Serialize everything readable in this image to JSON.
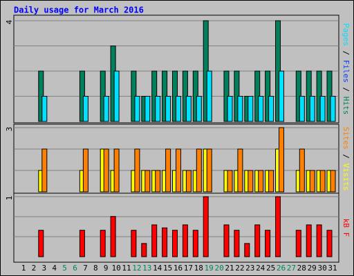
{
  "chart_data": {
    "type": "bar",
    "title": "Daily usage for March 2016",
    "title_color": "#0000ff",
    "categories": [
      "1",
      "2",
      "3",
      "4",
      "5",
      "6",
      "7",
      "8",
      "9",
      "10",
      "11",
      "12",
      "13",
      "14",
      "15",
      "16",
      "17",
      "18",
      "19",
      "20",
      "21",
      "22",
      "23",
      "24",
      "25",
      "26",
      "27",
      "28",
      "29",
      "30",
      "31"
    ],
    "category_colors": [
      "#000000",
      "#000000",
      "#000000",
      "#000000",
      "#00805c",
      "#00805c",
      "#000000",
      "#000000",
      "#000000",
      "#000000",
      "#000000",
      "#00805c",
      "#00805c",
      "#000000",
      "#000000",
      "#000000",
      "#000000",
      "#000000",
      "#00805c",
      "#00805c",
      "#000000",
      "#000000",
      "#000000",
      "#000000",
      "#000000",
      "#00805c",
      "#00805c",
      "#000000",
      "#000000",
      "#000000",
      "#000000"
    ],
    "legend_separator": " / ",
    "panels": [
      {
        "ylim": [
          0,
          4
        ],
        "yticks": [
          4
        ],
        "gridlines": [
          1,
          2,
          3
        ],
        "series": [
          {
            "name": "Pages",
            "color": "#00e0ff",
            "legend_only": true
          },
          {
            "name": "Files",
            "color": "#0040ff",
            "legend_only": true
          },
          {
            "name": "Hits",
            "color": "#00805c",
            "values": [
              null,
              null,
              2,
              null,
              null,
              null,
              2,
              null,
              2,
              3,
              null,
              2,
              1,
              2,
              2,
              2,
              2,
              2,
              4,
              null,
              2,
              2,
              1,
              2,
              2,
              4,
              null,
              2,
              2,
              2,
              2
            ]
          },
          {
            "name": "Pages",
            "color": "#00e0ff",
            "legend_hidden": true,
            "values": [
              null,
              null,
              1,
              null,
              null,
              null,
              1,
              null,
              1,
              2,
              null,
              1,
              1,
              1,
              1,
              1,
              1,
              1,
              2,
              null,
              1,
              1,
              1,
              1,
              1,
              2,
              null,
              1,
              1,
              1,
              1
            ]
          }
        ]
      },
      {
        "ylim": [
          0,
          3
        ],
        "yticks": [
          3
        ],
        "gridlines": [
          1,
          2
        ],
        "series": [
          {
            "name": "Sites",
            "color": "#ff8000",
            "legend_only": true
          },
          {
            "name": "Visits",
            "color": "#ffff00",
            "legend_only": true
          },
          {
            "name": "Visits",
            "color": "#ffff00",
            "legend_hidden": true,
            "values": [
              null,
              null,
              1,
              null,
              null,
              null,
              1,
              null,
              2,
              1,
              null,
              1,
              1,
              1,
              1,
              1,
              1,
              1,
              2,
              null,
              1,
              1,
              1,
              1,
              1,
              2,
              null,
              1,
              1,
              1,
              1
            ]
          },
          {
            "name": "Sites",
            "color": "#ff8000",
            "legend_hidden": true,
            "values": [
              null,
              null,
              2,
              null,
              null,
              null,
              2,
              null,
              2,
              2,
              null,
              2,
              1,
              1,
              2,
              2,
              1,
              2,
              2,
              null,
              1,
              2,
              1,
              1,
              1,
              3,
              null,
              2,
              1,
              1,
              1
            ]
          }
        ]
      },
      {
        "ylim": [
          0,
          1
        ],
        "yticks": [
          1
        ],
        "gridlines": [
          0.333,
          0.667
        ],
        "series": [
          {
            "name": "kB F",
            "color": "#ff0000",
            "values": [
              null,
              null,
              0.44,
              null,
              null,
              null,
              0.44,
              null,
              0.44,
              0.67,
              null,
              0.44,
              0.22,
              0.53,
              0.48,
              0.44,
              0.53,
              0.44,
              1,
              null,
              0.53,
              0.44,
              0.22,
              0.53,
              0.44,
              1,
              null,
              0.44,
              0.53,
              0.53,
              0.44
            ]
          }
        ]
      }
    ]
  }
}
